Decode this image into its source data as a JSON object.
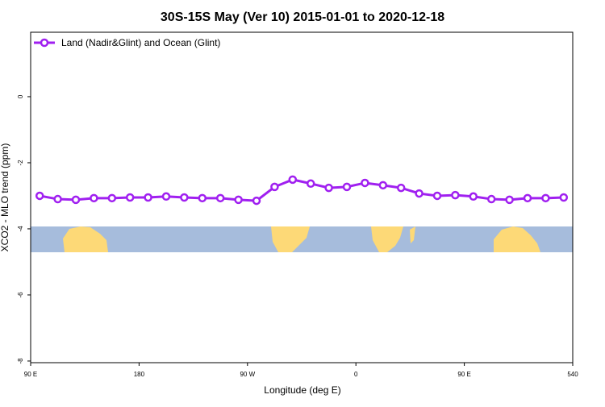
{
  "chart_data": {
    "type": "line",
    "title": "30S-15S May (Ver 10)   2015-01-01 to 2020-12-18",
    "x_label": "Longitude (deg E)",
    "y_label": "XCO2 - MLO trend (ppm)",
    "x": [
      97.5,
      112.5,
      127.5,
      142.5,
      157.5,
      172.5,
      187.5,
      202.5,
      217.5,
      232.5,
      247.5,
      262.5,
      277.5,
      292.5,
      307.5,
      322.5,
      337.5,
      352.5,
      367.5,
      382.5,
      397.5,
      412.5,
      427.5,
      442.5,
      457.5,
      472.5,
      487.5,
      502.5,
      517.5,
      532.5
    ],
    "series": [
      {
        "name": "Land (Nadir&Glint) and Ocean (Glint)",
        "color": "#a020f0",
        "values": [
          -3.0,
          -3.1,
          -3.12,
          -3.07,
          -3.07,
          -3.05,
          -3.05,
          -3.02,
          -3.05,
          -3.07,
          -3.07,
          -3.12,
          -3.15,
          -2.73,
          -2.51,
          -2.63,
          -2.76,
          -2.73,
          -2.61,
          -2.68,
          -2.76,
          -2.93,
          -3.0,
          -2.98,
          -3.02,
          -3.1,
          -3.12,
          -3.07,
          -3.07,
          -3.05
        ]
      }
    ],
    "xlim": [
      90,
      540
    ],
    "xticks": [
      {
        "value": 90,
        "label": "90 E"
      },
      180,
      {
        "value": 270,
        "label": "90 W"
      },
      {
        "value": 360,
        "label": "0"
      },
      {
        "value": 450,
        "label": "90 E"
      },
      540
    ],
    "ylim": [
      -8.05,
      1.95
    ],
    "yticks": [
      0,
      -2,
      -4,
      -6,
      -8
    ],
    "legend": "top-left"
  }
}
